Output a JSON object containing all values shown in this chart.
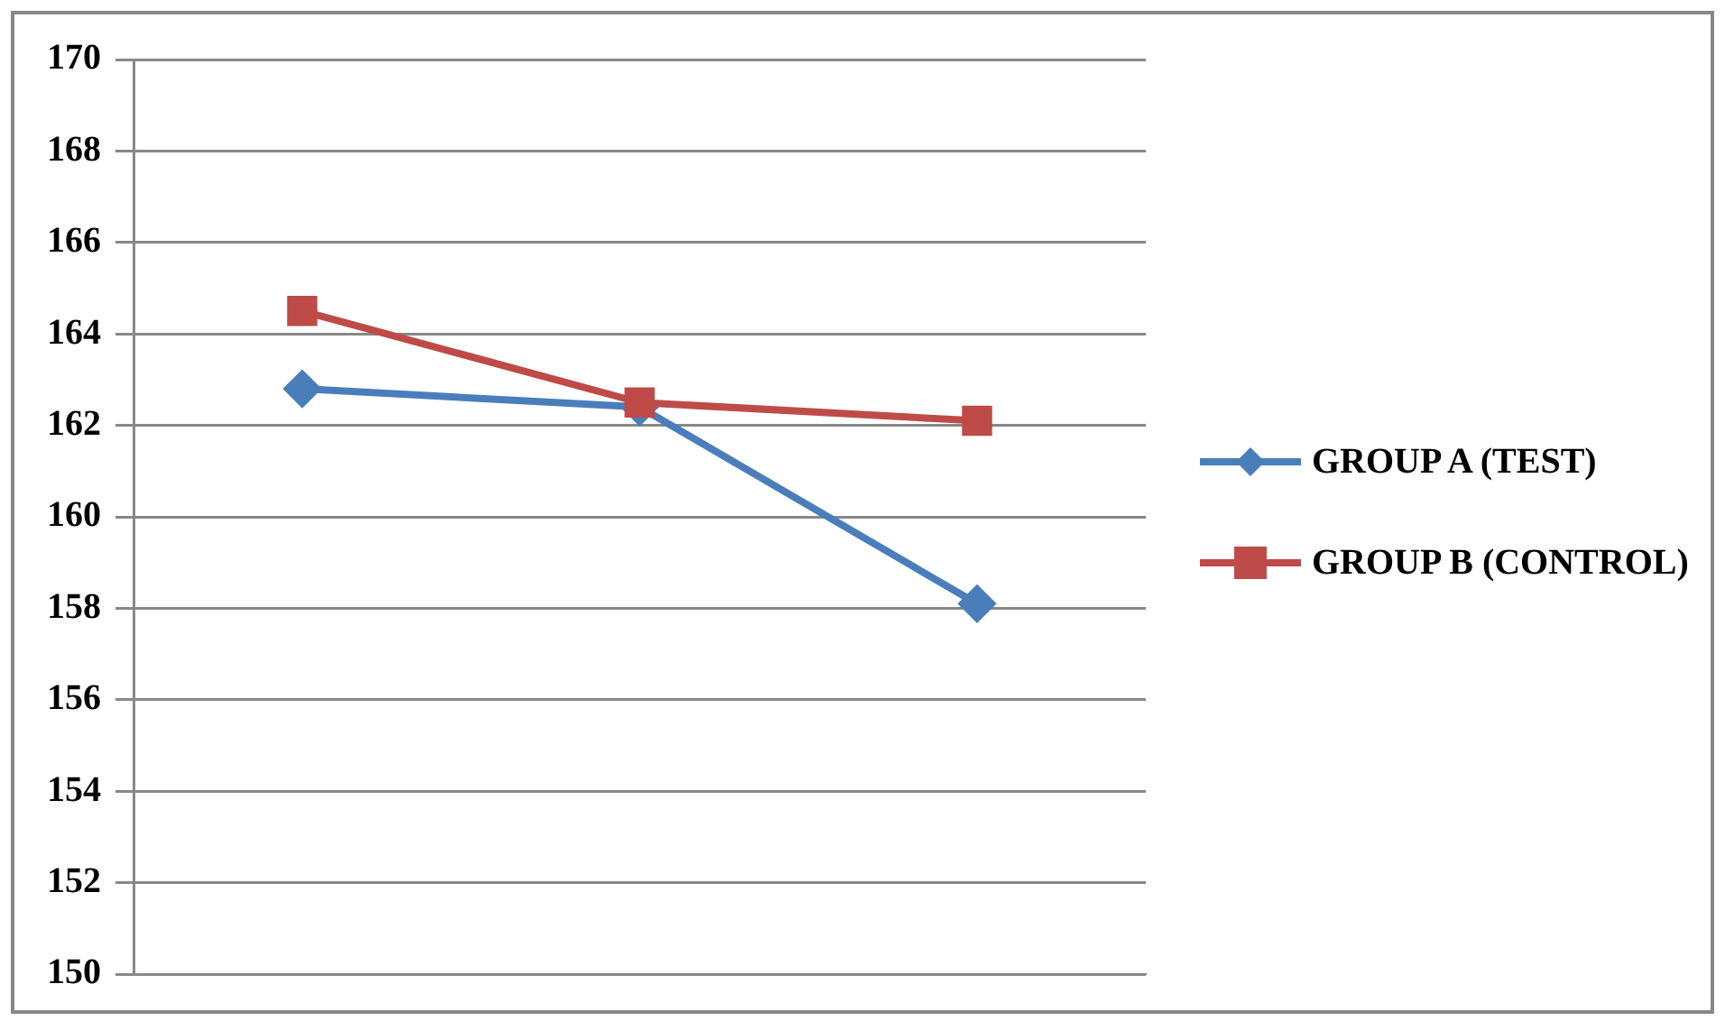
{
  "chart_data": {
    "type": "line",
    "categories": [
      null,
      null,
      null
    ],
    "series": [
      {
        "name": "GROUP A (TEST)",
        "color": "#4a7ebb",
        "marker": "diamond",
        "values": [
          162.8,
          162.4,
          158.1
        ]
      },
      {
        "name": "GROUP B (CONTROL)",
        "color": "#be4b48",
        "marker": "square",
        "values": [
          164.5,
          162.5,
          162.1
        ]
      }
    ],
    "ylim": [
      150,
      170
    ],
    "yticks": [
      150,
      152,
      154,
      156,
      158,
      160,
      162,
      164,
      166,
      168,
      170
    ],
    "grid": "y",
    "legend": "right",
    "tick_labels": "y"
  }
}
